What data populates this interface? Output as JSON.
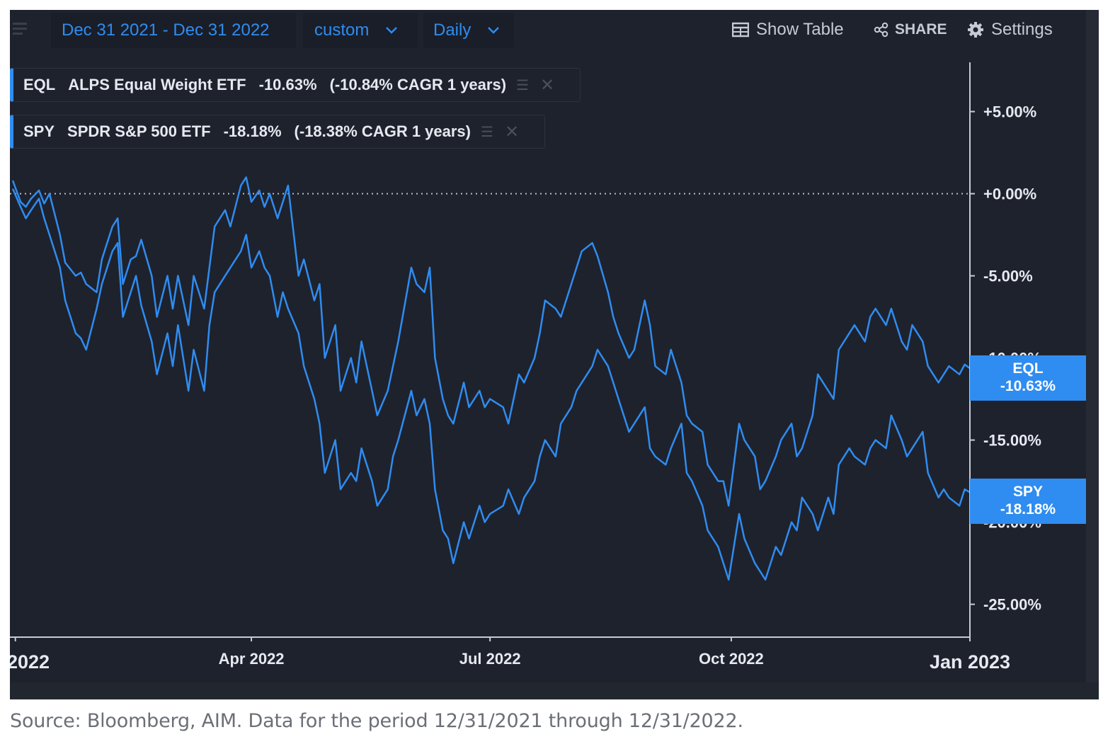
{
  "toolbar": {
    "date_range": "Dec 31 2021 - Dec 31 2022",
    "range_mode": "custom",
    "interval": "Daily",
    "show_table": "Show Table",
    "share": "SHARE",
    "settings": "Settings"
  },
  "legend": [
    {
      "ticker": "EQL",
      "name": "ALPS Equal Weight ETF",
      "return": "-10.63%",
      "cagr": "(-10.84% CAGR 1 years)"
    },
    {
      "ticker": "SPY",
      "name": "SPDR S&P 500 ETF",
      "return": "-18.18%",
      "cagr": "(-18.38% CAGR 1 years)"
    }
  ],
  "tags": {
    "eql_ticker": "EQL",
    "eql_value": "-10.63%",
    "spy_ticker": "SPY",
    "spy_value": "-18.18%"
  },
  "source_note": "Source: Bloomberg, AIM. Data for the period 12/31/2021 through 12/31/2022.",
  "colors": {
    "line": "#2f8cf0",
    "background": "#1e222d",
    "tag": "#2f8cf0"
  },
  "chart_data": {
    "type": "line",
    "title": "",
    "xlabel": "",
    "ylabel": "",
    "x_ticks": [
      "2022",
      "Apr 2022",
      "Jul 2022",
      "Oct 2022",
      "Jan 2023"
    ],
    "y_ticks": [
      "+5.00%",
      "+0.00%",
      "-5.00%",
      "-10.00%",
      "-15.00%",
      "-20.00%",
      "-25.00%"
    ],
    "y_tick_values": [
      5,
      0,
      -5,
      -10,
      -15,
      -20,
      -25
    ],
    "ylim": [
      -28,
      9
    ],
    "x_range": [
      "2021-12-31",
      "2022-12-31"
    ],
    "reference_line": 0,
    "grid": false,
    "series": [
      {
        "name": "EQL",
        "final": -10.63,
        "points": [
          [
            "2021-12-31",
            0.8
          ],
          [
            "2022-01-03",
            -0.5
          ],
          [
            "2022-01-05",
            -0.8
          ],
          [
            "2022-01-07",
            -0.3
          ],
          [
            "2022-01-10",
            0.2
          ],
          [
            "2022-01-12",
            -0.6
          ],
          [
            "2022-01-14",
            0.0
          ],
          [
            "2022-01-18",
            -2.5
          ],
          [
            "2022-01-20",
            -4.2
          ],
          [
            "2022-01-24",
            -5.0
          ],
          [
            "2022-01-26",
            -4.8
          ],
          [
            "2022-01-28",
            -5.5
          ],
          [
            "2022-02-01",
            -6.0
          ],
          [
            "2022-02-03",
            -4.0
          ],
          [
            "2022-02-07",
            -2.0
          ],
          [
            "2022-02-09",
            -1.5
          ],
          [
            "2022-02-11",
            -5.5
          ],
          [
            "2022-02-14",
            -4.0
          ],
          [
            "2022-02-16",
            -3.8
          ],
          [
            "2022-02-18",
            -2.8
          ],
          [
            "2022-02-22",
            -5.0
          ],
          [
            "2022-02-24",
            -7.5
          ],
          [
            "2022-02-28",
            -5.0
          ],
          [
            "2022-03-02",
            -7.0
          ],
          [
            "2022-03-04",
            -5.0
          ],
          [
            "2022-03-08",
            -8.0
          ],
          [
            "2022-03-10",
            -5.0
          ],
          [
            "2022-03-14",
            -7.0
          ],
          [
            "2022-03-16",
            -4.5
          ],
          [
            "2022-03-18",
            -2.0
          ],
          [
            "2022-03-22",
            -1.0
          ],
          [
            "2022-03-24",
            -2.0
          ],
          [
            "2022-03-28",
            0.5
          ],
          [
            "2022-03-30",
            1.0
          ],
          [
            "2022-04-01",
            -0.5
          ],
          [
            "2022-04-04",
            0.2
          ],
          [
            "2022-04-06",
            -0.8
          ],
          [
            "2022-04-08",
            0.0
          ],
          [
            "2022-04-11",
            -1.5
          ],
          [
            "2022-04-13",
            -0.5
          ],
          [
            "2022-04-15",
            0.5
          ],
          [
            "2022-04-19",
            -5.0
          ],
          [
            "2022-04-21",
            -4.0
          ],
          [
            "2022-04-25",
            -6.5
          ],
          [
            "2022-04-27",
            -5.5
          ],
          [
            "2022-04-29",
            -10.0
          ],
          [
            "2022-05-03",
            -8.0
          ],
          [
            "2022-05-05",
            -12.0
          ],
          [
            "2022-05-09",
            -10.0
          ],
          [
            "2022-05-11",
            -11.5
          ],
          [
            "2022-05-13",
            -9.0
          ],
          [
            "2022-05-17",
            -12.0
          ],
          [
            "2022-05-19",
            -13.5
          ],
          [
            "2022-05-23",
            -12.0
          ],
          [
            "2022-05-25",
            -10.5
          ],
          [
            "2022-05-27",
            -9.0
          ],
          [
            "2022-06-01",
            -4.5
          ],
          [
            "2022-06-03",
            -5.5
          ],
          [
            "2022-06-06",
            -6.0
          ],
          [
            "2022-06-08",
            -4.5
          ],
          [
            "2022-06-10",
            -10.0
          ],
          [
            "2022-06-13",
            -12.5
          ],
          [
            "2022-06-15",
            -13.5
          ],
          [
            "2022-06-17",
            -14.0
          ],
          [
            "2022-06-21",
            -11.5
          ],
          [
            "2022-06-23",
            -13.0
          ],
          [
            "2022-06-27",
            -12.0
          ],
          [
            "2022-06-29",
            -13.0
          ],
          [
            "2022-07-01",
            -12.5
          ],
          [
            "2022-07-06",
            -13.0
          ],
          [
            "2022-07-08",
            -14.0
          ],
          [
            "2022-07-12",
            -11.0
          ],
          [
            "2022-07-14",
            -11.5
          ],
          [
            "2022-07-18",
            -10.0
          ],
          [
            "2022-07-20",
            -8.5
          ],
          [
            "2022-07-22",
            -6.5
          ],
          [
            "2022-07-26",
            -7.0
          ],
          [
            "2022-07-28",
            -7.5
          ],
          [
            "2022-08-01",
            -5.5
          ],
          [
            "2022-08-03",
            -4.5
          ],
          [
            "2022-08-05",
            -3.5
          ],
          [
            "2022-08-09",
            -3.0
          ],
          [
            "2022-08-11",
            -3.8
          ],
          [
            "2022-08-15",
            -6.0
          ],
          [
            "2022-08-17",
            -7.5
          ],
          [
            "2022-08-19",
            -8.5
          ],
          [
            "2022-08-23",
            -10.0
          ],
          [
            "2022-08-25",
            -9.5
          ],
          [
            "2022-08-29",
            -6.5
          ],
          [
            "2022-08-31",
            -8.0
          ],
          [
            "2022-09-02",
            -10.5
          ],
          [
            "2022-09-06",
            -11.0
          ],
          [
            "2022-09-08",
            -9.5
          ],
          [
            "2022-09-12",
            -11.5
          ],
          [
            "2022-09-14",
            -13.5
          ],
          [
            "2022-09-16",
            -14.0
          ],
          [
            "2022-09-20",
            -14.5
          ],
          [
            "2022-09-22",
            -16.5
          ],
          [
            "2022-09-26",
            -17.5
          ],
          [
            "2022-09-28",
            -17.5
          ],
          [
            "2022-09-30",
            -19.0
          ],
          [
            "2022-10-04",
            -14.0
          ],
          [
            "2022-10-06",
            -15.0
          ],
          [
            "2022-10-10",
            -16.0
          ],
          [
            "2022-10-12",
            -18.0
          ],
          [
            "2022-10-14",
            -17.5
          ],
          [
            "2022-10-18",
            -16.0
          ],
          [
            "2022-10-20",
            -15.0
          ],
          [
            "2022-10-24",
            -14.0
          ],
          [
            "2022-10-26",
            -16.0
          ],
          [
            "2022-10-28",
            -15.5
          ],
          [
            "2022-11-01",
            -13.5
          ],
          [
            "2022-11-03",
            -11.0
          ],
          [
            "2022-11-07",
            -12.0
          ],
          [
            "2022-11-09",
            -12.5
          ],
          [
            "2022-11-11",
            -9.5
          ],
          [
            "2022-11-15",
            -8.5
          ],
          [
            "2022-11-17",
            -8.0
          ],
          [
            "2022-11-21",
            -9.0
          ],
          [
            "2022-11-23",
            -7.5
          ],
          [
            "2022-11-25",
            -7.0
          ],
          [
            "2022-11-29",
            -8.0
          ],
          [
            "2022-12-01",
            -7.0
          ],
          [
            "2022-12-05",
            -9.0
          ],
          [
            "2022-12-07",
            -9.5
          ],
          [
            "2022-12-09",
            -8.0
          ],
          [
            "2022-12-13",
            -9.0
          ],
          [
            "2022-12-15",
            -10.5
          ],
          [
            "2022-12-19",
            -11.5
          ],
          [
            "2022-12-21",
            -11.0
          ],
          [
            "2022-12-23",
            -10.5
          ],
          [
            "2022-12-27",
            -11.0
          ],
          [
            "2022-12-29",
            -10.4
          ],
          [
            "2022-12-31",
            -10.63
          ]
        ]
      },
      {
        "name": "SPY",
        "final": -18.18,
        "points": [
          [
            "2021-12-31",
            0.3
          ],
          [
            "2022-01-03",
            -0.8
          ],
          [
            "2022-01-05",
            -1.5
          ],
          [
            "2022-01-07",
            -1.0
          ],
          [
            "2022-01-10",
            -0.3
          ],
          [
            "2022-01-12",
            -1.5
          ],
          [
            "2022-01-14",
            -2.5
          ],
          [
            "2022-01-18",
            -4.5
          ],
          [
            "2022-01-20",
            -6.5
          ],
          [
            "2022-01-24",
            -8.5
          ],
          [
            "2022-01-26",
            -8.8
          ],
          [
            "2022-01-28",
            -9.5
          ],
          [
            "2022-02-01",
            -7.0
          ],
          [
            "2022-02-03",
            -5.5
          ],
          [
            "2022-02-07",
            -3.5
          ],
          [
            "2022-02-09",
            -3.0
          ],
          [
            "2022-02-11",
            -7.5
          ],
          [
            "2022-02-14",
            -6.0
          ],
          [
            "2022-02-16",
            -5.0
          ],
          [
            "2022-02-18",
            -6.8
          ],
          [
            "2022-02-22",
            -9.0
          ],
          [
            "2022-02-24",
            -11.0
          ],
          [
            "2022-02-28",
            -8.5
          ],
          [
            "2022-03-02",
            -10.5
          ],
          [
            "2022-03-04",
            -8.0
          ],
          [
            "2022-03-08",
            -12.0
          ],
          [
            "2022-03-10",
            -9.5
          ],
          [
            "2022-03-14",
            -12.0
          ],
          [
            "2022-03-16",
            -8.0
          ],
          [
            "2022-03-18",
            -6.0
          ],
          [
            "2022-03-22",
            -5.0
          ],
          [
            "2022-03-24",
            -4.5
          ],
          [
            "2022-03-28",
            -3.5
          ],
          [
            "2022-03-30",
            -2.5
          ],
          [
            "2022-04-01",
            -4.5
          ],
          [
            "2022-04-04",
            -3.5
          ],
          [
            "2022-04-06",
            -4.5
          ],
          [
            "2022-04-08",
            -5.0
          ],
          [
            "2022-04-11",
            -7.5
          ],
          [
            "2022-04-13",
            -6.0
          ],
          [
            "2022-04-15",
            -7.0
          ],
          [
            "2022-04-19",
            -8.5
          ],
          [
            "2022-04-21",
            -10.5
          ],
          [
            "2022-04-25",
            -12.5
          ],
          [
            "2022-04-27",
            -14.0
          ],
          [
            "2022-04-29",
            -17.0
          ],
          [
            "2022-05-03",
            -15.0
          ],
          [
            "2022-05-05",
            -18.0
          ],
          [
            "2022-05-09",
            -17.0
          ],
          [
            "2022-05-11",
            -17.5
          ],
          [
            "2022-05-13",
            -15.5
          ],
          [
            "2022-05-17",
            -17.5
          ],
          [
            "2022-05-19",
            -19.0
          ],
          [
            "2022-05-23",
            -18.0
          ],
          [
            "2022-05-25",
            -16.0
          ],
          [
            "2022-05-27",
            -15.0
          ],
          [
            "2022-06-01",
            -12.0
          ],
          [
            "2022-06-03",
            -13.5
          ],
          [
            "2022-06-06",
            -12.5
          ],
          [
            "2022-06-08",
            -14.0
          ],
          [
            "2022-06-10",
            -18.0
          ],
          [
            "2022-06-13",
            -20.5
          ],
          [
            "2022-06-15",
            -21.0
          ],
          [
            "2022-06-17",
            -22.5
          ],
          [
            "2022-06-21",
            -20.0
          ],
          [
            "2022-06-23",
            -21.0
          ],
          [
            "2022-06-27",
            -19.0
          ],
          [
            "2022-06-29",
            -20.0
          ],
          [
            "2022-07-01",
            -19.5
          ],
          [
            "2022-07-06",
            -19.0
          ],
          [
            "2022-07-08",
            -18.0
          ],
          [
            "2022-07-12",
            -19.5
          ],
          [
            "2022-07-14",
            -18.5
          ],
          [
            "2022-07-18",
            -17.5
          ],
          [
            "2022-07-20",
            -16.0
          ],
          [
            "2022-07-22",
            -15.0
          ],
          [
            "2022-07-26",
            -16.0
          ],
          [
            "2022-07-28",
            -14.0
          ],
          [
            "2022-08-01",
            -13.0
          ],
          [
            "2022-08-03",
            -12.0
          ],
          [
            "2022-08-05",
            -11.5
          ],
          [
            "2022-08-09",
            -10.5
          ],
          [
            "2022-08-11",
            -9.5
          ],
          [
            "2022-08-15",
            -10.5
          ],
          [
            "2022-08-17",
            -11.5
          ],
          [
            "2022-08-19",
            -12.5
          ],
          [
            "2022-08-23",
            -14.5
          ],
          [
            "2022-08-25",
            -14.0
          ],
          [
            "2022-08-29",
            -13.0
          ],
          [
            "2022-08-31",
            -15.5
          ],
          [
            "2022-09-02",
            -16.0
          ],
          [
            "2022-09-06",
            -16.5
          ],
          [
            "2022-09-08",
            -15.5
          ],
          [
            "2022-09-12",
            -14.0
          ],
          [
            "2022-09-14",
            -17.0
          ],
          [
            "2022-09-16",
            -17.5
          ],
          [
            "2022-09-20",
            -19.0
          ],
          [
            "2022-09-22",
            -20.5
          ],
          [
            "2022-09-26",
            -21.5
          ],
          [
            "2022-09-28",
            -22.5
          ],
          [
            "2022-09-30",
            -23.5
          ],
          [
            "2022-10-04",
            -19.5
          ],
          [
            "2022-10-06",
            -21.0
          ],
          [
            "2022-10-10",
            -22.5
          ],
          [
            "2022-10-12",
            -23.0
          ],
          [
            "2022-10-14",
            -23.5
          ],
          [
            "2022-10-18",
            -21.5
          ],
          [
            "2022-10-20",
            -22.0
          ],
          [
            "2022-10-24",
            -20.0
          ],
          [
            "2022-10-26",
            -20.5
          ],
          [
            "2022-10-28",
            -18.5
          ],
          [
            "2022-11-01",
            -19.5
          ],
          [
            "2022-11-03",
            -20.5
          ],
          [
            "2022-11-07",
            -18.5
          ],
          [
            "2022-11-09",
            -19.5
          ],
          [
            "2022-11-11",
            -16.5
          ],
          [
            "2022-11-15",
            -15.5
          ],
          [
            "2022-11-17",
            -16.0
          ],
          [
            "2022-11-21",
            -16.5
          ],
          [
            "2022-11-23",
            -15.5
          ],
          [
            "2022-11-25",
            -15.0
          ],
          [
            "2022-11-29",
            -15.5
          ],
          [
            "2022-12-01",
            -13.5
          ],
          [
            "2022-12-05",
            -15.0
          ],
          [
            "2022-12-07",
            -16.0
          ],
          [
            "2022-12-09",
            -15.5
          ],
          [
            "2022-12-13",
            -14.5
          ],
          [
            "2022-12-15",
            -17.0
          ],
          [
            "2022-12-19",
            -18.5
          ],
          [
            "2022-12-21",
            -18.0
          ],
          [
            "2022-12-23",
            -18.5
          ],
          [
            "2022-12-27",
            -19.0
          ],
          [
            "2022-12-29",
            -18.0
          ],
          [
            "2022-12-31",
            -18.18
          ]
        ]
      }
    ]
  }
}
